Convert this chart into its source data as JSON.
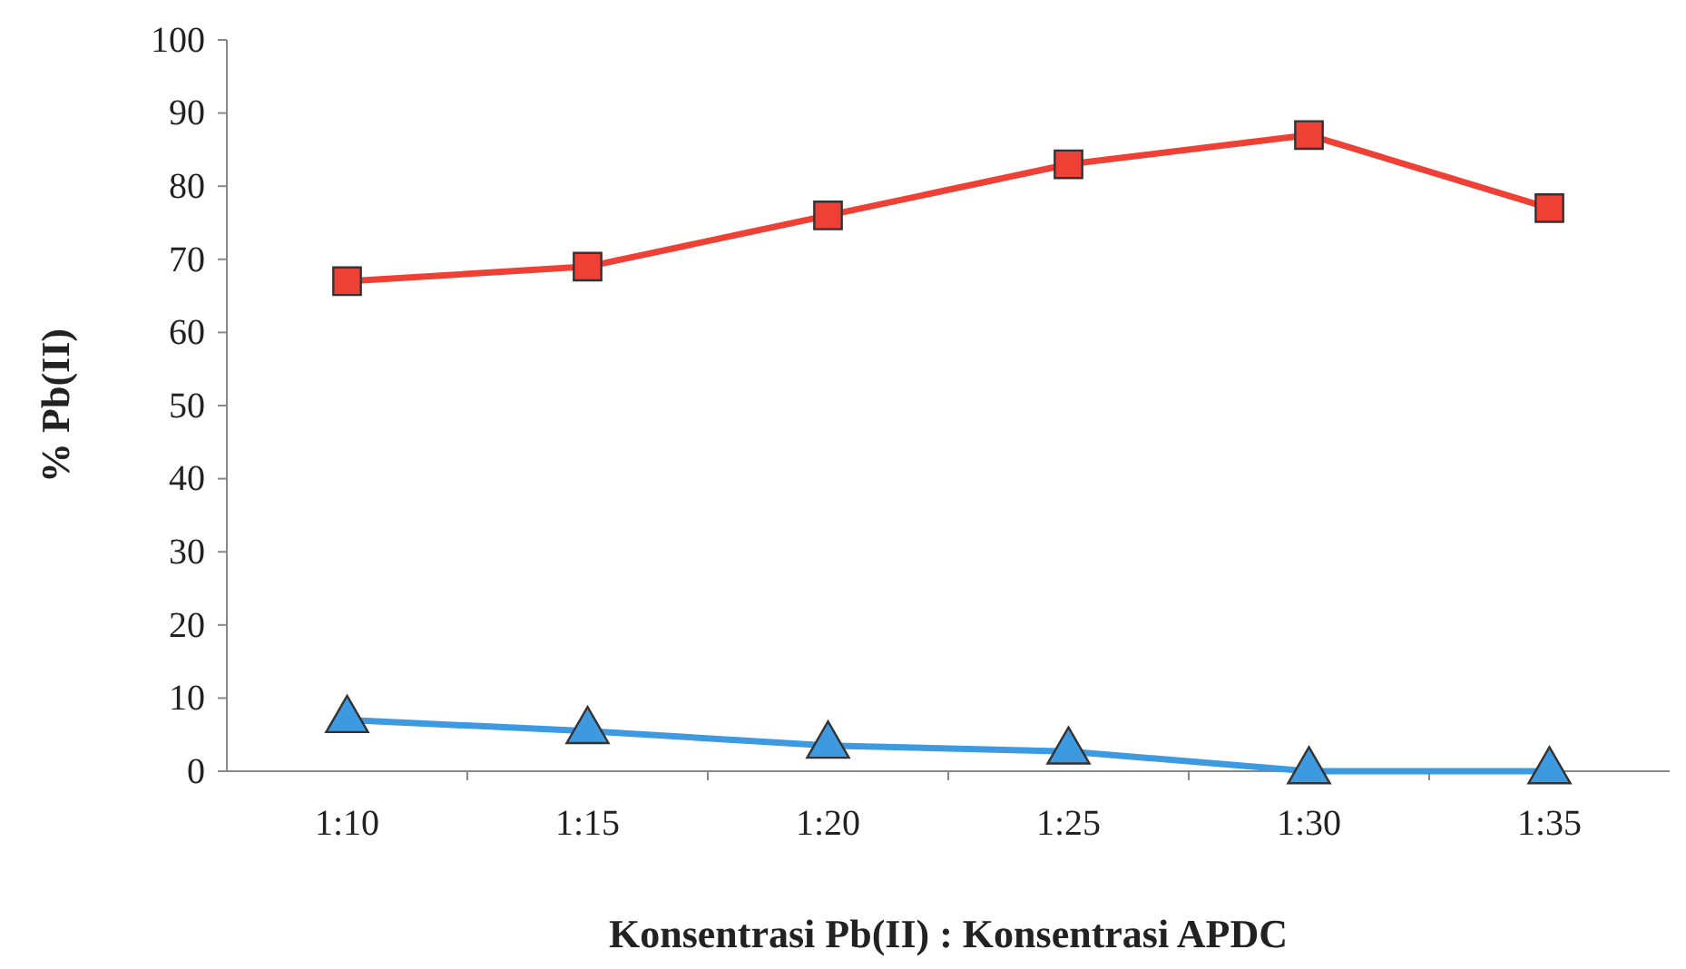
{
  "chart_data": {
    "type": "line",
    "xlabel": "Konsentrasi Pb(II) : Konsentrasi APDC",
    "ylabel": "% Pb(II)",
    "categories": [
      "1:10",
      "1:15",
      "1:20",
      "1:25",
      "1:30",
      "1:35"
    ],
    "series": [
      {
        "color": "#ee4035",
        "marker": "square",
        "values": [
          67,
          69,
          76,
          83,
          87,
          77
        ]
      },
      {
        "color": "#3d9ae0",
        "marker": "triangle",
        "values": [
          7,
          5.5,
          3.5,
          2.7,
          0,
          0
        ]
      }
    ],
    "ylim": [
      0,
      100
    ],
    "yticks": [
      0,
      10,
      20,
      30,
      40,
      50,
      60,
      70,
      80,
      90,
      100
    ],
    "grid": false,
    "line_style": "solid"
  }
}
